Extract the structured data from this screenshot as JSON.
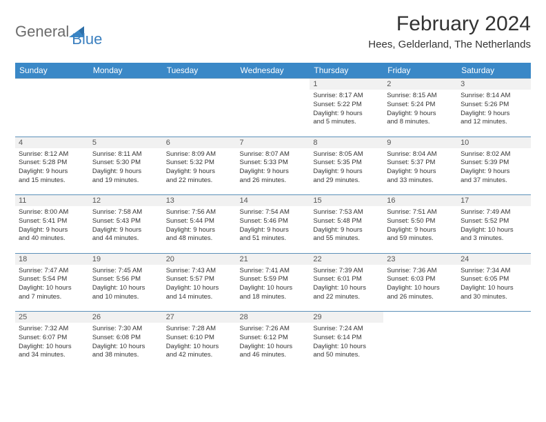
{
  "logo": {
    "part1": "General",
    "part2": "Blue"
  },
  "title": "February 2024",
  "location": "Hees, Gelderland, The Netherlands",
  "colors": {
    "header_bg": "#3a88c7",
    "header_text": "#ffffff",
    "daynum_bg": "#f1f1f1",
    "border": "#5a8fb8",
    "logo_gray": "#6b6b6b",
    "logo_blue": "#3a7fbf"
  },
  "day_headers": [
    "Sunday",
    "Monday",
    "Tuesday",
    "Wednesday",
    "Thursday",
    "Friday",
    "Saturday"
  ],
  "weeks": [
    [
      null,
      null,
      null,
      null,
      {
        "d": "1",
        "l1": "Sunrise: 8:17 AM",
        "l2": "Sunset: 5:22 PM",
        "l3": "Daylight: 9 hours",
        "l4": "and 5 minutes."
      },
      {
        "d": "2",
        "l1": "Sunrise: 8:15 AM",
        "l2": "Sunset: 5:24 PM",
        "l3": "Daylight: 9 hours",
        "l4": "and 8 minutes."
      },
      {
        "d": "3",
        "l1": "Sunrise: 8:14 AM",
        "l2": "Sunset: 5:26 PM",
        "l3": "Daylight: 9 hours",
        "l4": "and 12 minutes."
      }
    ],
    [
      {
        "d": "4",
        "l1": "Sunrise: 8:12 AM",
        "l2": "Sunset: 5:28 PM",
        "l3": "Daylight: 9 hours",
        "l4": "and 15 minutes."
      },
      {
        "d": "5",
        "l1": "Sunrise: 8:11 AM",
        "l2": "Sunset: 5:30 PM",
        "l3": "Daylight: 9 hours",
        "l4": "and 19 minutes."
      },
      {
        "d": "6",
        "l1": "Sunrise: 8:09 AM",
        "l2": "Sunset: 5:32 PM",
        "l3": "Daylight: 9 hours",
        "l4": "and 22 minutes."
      },
      {
        "d": "7",
        "l1": "Sunrise: 8:07 AM",
        "l2": "Sunset: 5:33 PM",
        "l3": "Daylight: 9 hours",
        "l4": "and 26 minutes."
      },
      {
        "d": "8",
        "l1": "Sunrise: 8:05 AM",
        "l2": "Sunset: 5:35 PM",
        "l3": "Daylight: 9 hours",
        "l4": "and 29 minutes."
      },
      {
        "d": "9",
        "l1": "Sunrise: 8:04 AM",
        "l2": "Sunset: 5:37 PM",
        "l3": "Daylight: 9 hours",
        "l4": "and 33 minutes."
      },
      {
        "d": "10",
        "l1": "Sunrise: 8:02 AM",
        "l2": "Sunset: 5:39 PM",
        "l3": "Daylight: 9 hours",
        "l4": "and 37 minutes."
      }
    ],
    [
      {
        "d": "11",
        "l1": "Sunrise: 8:00 AM",
        "l2": "Sunset: 5:41 PM",
        "l3": "Daylight: 9 hours",
        "l4": "and 40 minutes."
      },
      {
        "d": "12",
        "l1": "Sunrise: 7:58 AM",
        "l2": "Sunset: 5:43 PM",
        "l3": "Daylight: 9 hours",
        "l4": "and 44 minutes."
      },
      {
        "d": "13",
        "l1": "Sunrise: 7:56 AM",
        "l2": "Sunset: 5:44 PM",
        "l3": "Daylight: 9 hours",
        "l4": "and 48 minutes."
      },
      {
        "d": "14",
        "l1": "Sunrise: 7:54 AM",
        "l2": "Sunset: 5:46 PM",
        "l3": "Daylight: 9 hours",
        "l4": "and 51 minutes."
      },
      {
        "d": "15",
        "l1": "Sunrise: 7:53 AM",
        "l2": "Sunset: 5:48 PM",
        "l3": "Daylight: 9 hours",
        "l4": "and 55 minutes."
      },
      {
        "d": "16",
        "l1": "Sunrise: 7:51 AM",
        "l2": "Sunset: 5:50 PM",
        "l3": "Daylight: 9 hours",
        "l4": "and 59 minutes."
      },
      {
        "d": "17",
        "l1": "Sunrise: 7:49 AM",
        "l2": "Sunset: 5:52 PM",
        "l3": "Daylight: 10 hours",
        "l4": "and 3 minutes."
      }
    ],
    [
      {
        "d": "18",
        "l1": "Sunrise: 7:47 AM",
        "l2": "Sunset: 5:54 PM",
        "l3": "Daylight: 10 hours",
        "l4": "and 7 minutes."
      },
      {
        "d": "19",
        "l1": "Sunrise: 7:45 AM",
        "l2": "Sunset: 5:56 PM",
        "l3": "Daylight: 10 hours",
        "l4": "and 10 minutes."
      },
      {
        "d": "20",
        "l1": "Sunrise: 7:43 AM",
        "l2": "Sunset: 5:57 PM",
        "l3": "Daylight: 10 hours",
        "l4": "and 14 minutes."
      },
      {
        "d": "21",
        "l1": "Sunrise: 7:41 AM",
        "l2": "Sunset: 5:59 PM",
        "l3": "Daylight: 10 hours",
        "l4": "and 18 minutes."
      },
      {
        "d": "22",
        "l1": "Sunrise: 7:39 AM",
        "l2": "Sunset: 6:01 PM",
        "l3": "Daylight: 10 hours",
        "l4": "and 22 minutes."
      },
      {
        "d": "23",
        "l1": "Sunrise: 7:36 AM",
        "l2": "Sunset: 6:03 PM",
        "l3": "Daylight: 10 hours",
        "l4": "and 26 minutes."
      },
      {
        "d": "24",
        "l1": "Sunrise: 7:34 AM",
        "l2": "Sunset: 6:05 PM",
        "l3": "Daylight: 10 hours",
        "l4": "and 30 minutes."
      }
    ],
    [
      {
        "d": "25",
        "l1": "Sunrise: 7:32 AM",
        "l2": "Sunset: 6:07 PM",
        "l3": "Daylight: 10 hours",
        "l4": "and 34 minutes."
      },
      {
        "d": "26",
        "l1": "Sunrise: 7:30 AM",
        "l2": "Sunset: 6:08 PM",
        "l3": "Daylight: 10 hours",
        "l4": "and 38 minutes."
      },
      {
        "d": "27",
        "l1": "Sunrise: 7:28 AM",
        "l2": "Sunset: 6:10 PM",
        "l3": "Daylight: 10 hours",
        "l4": "and 42 minutes."
      },
      {
        "d": "28",
        "l1": "Sunrise: 7:26 AM",
        "l2": "Sunset: 6:12 PM",
        "l3": "Daylight: 10 hours",
        "l4": "and 46 minutes."
      },
      {
        "d": "29",
        "l1": "Sunrise: 7:24 AM",
        "l2": "Sunset: 6:14 PM",
        "l3": "Daylight: 10 hours",
        "l4": "and 50 minutes."
      },
      null,
      null
    ]
  ]
}
